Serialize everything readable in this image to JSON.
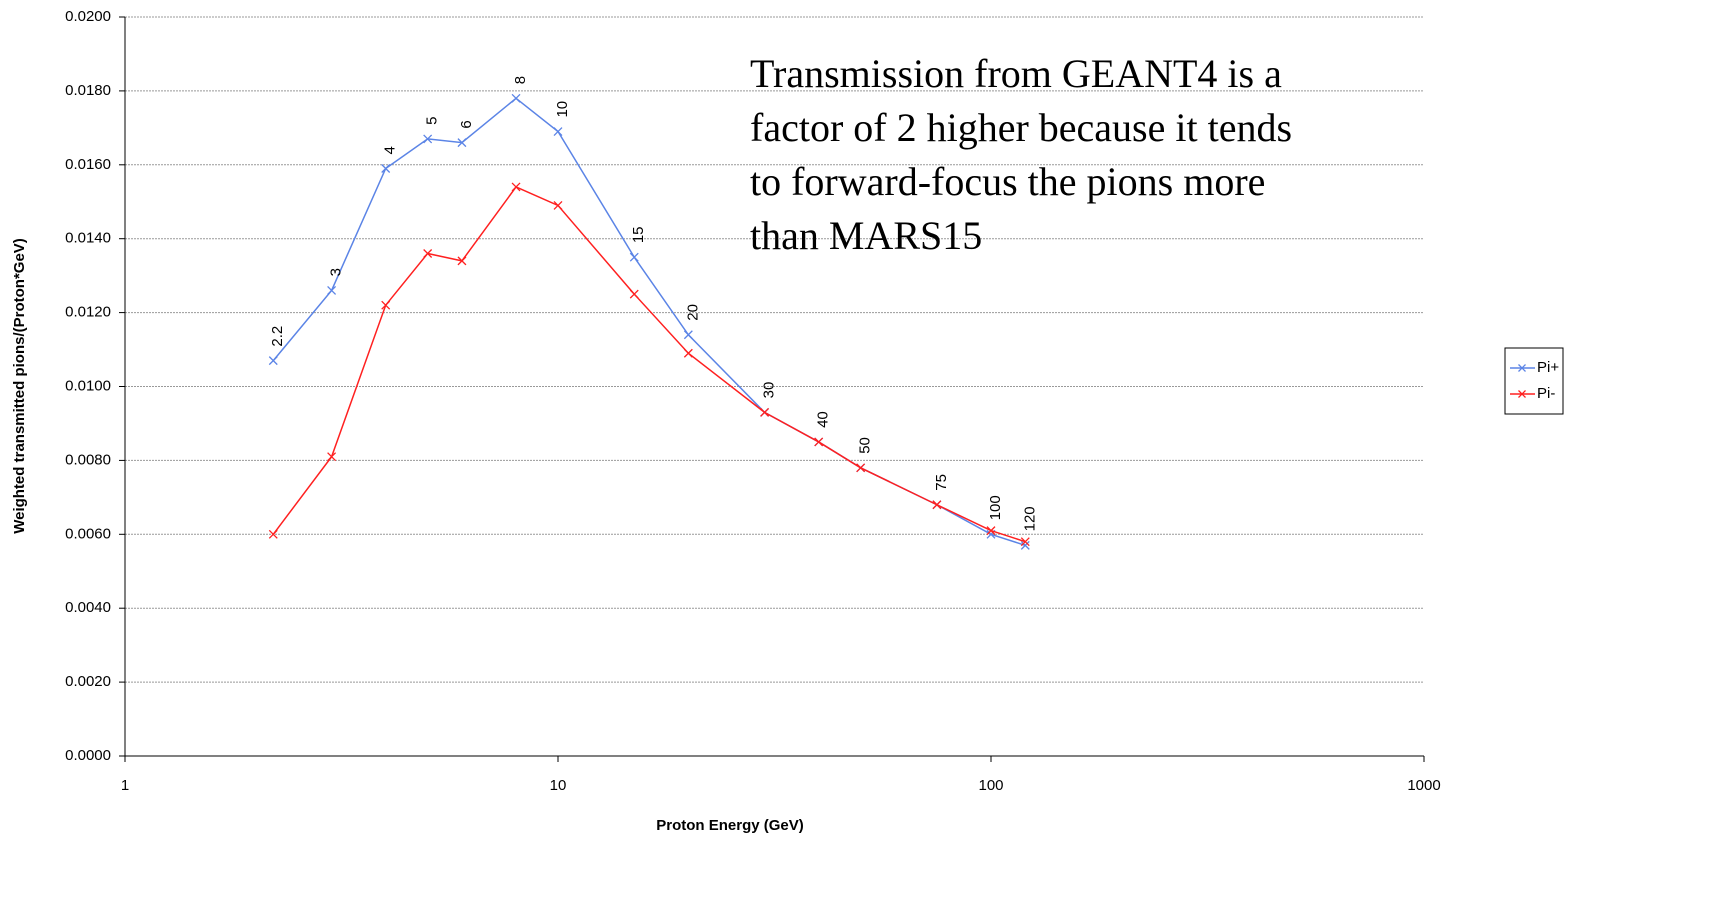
{
  "chart_data": {
    "type": "line",
    "x_label": "Proton Energy (GeV)",
    "y_label": "Weighted transmitted pions/(Proton*GeV)",
    "annotation": [
      "Transmission from GEANT4 is a",
      "factor of 2 higher because it tends",
      "to forward-focus the pions more",
      "than MARS15"
    ],
    "annotation_color": "#0000ee",
    "x": [
      2.2,
      3,
      4,
      5,
      6,
      8,
      10,
      15,
      20,
      30,
      40,
      50,
      75,
      100,
      120
    ],
    "series": [
      {
        "name": "Pi+",
        "color": "#5b84e6",
        "values": [
          0.0107,
          0.0126,
          0.0159,
          0.0167,
          0.0166,
          0.0178,
          0.0169,
          0.0135,
          0.0114,
          0.0093,
          0.0085,
          0.0078,
          0.0068,
          0.006,
          0.0057
        ]
      },
      {
        "name": "Pi-",
        "color": "#ff2020",
        "values": [
          0.006,
          0.0081,
          0.0122,
          0.0136,
          0.0134,
          0.0154,
          0.0149,
          0.0125,
          0.0109,
          0.0093,
          0.0085,
          0.0078,
          0.0068,
          0.0061,
          0.0058
        ]
      }
    ],
    "point_labels_series": 0,
    "xscale": "log",
    "xlim": [
      1,
      1000
    ],
    "xticks": [
      1,
      10,
      100,
      1000
    ],
    "ylim": [
      0,
      0.02
    ],
    "yticks": [
      {
        "value": 0,
        "label": "0.0000"
      },
      {
        "value": 0.002,
        "label": "0.0020"
      },
      {
        "value": 0.004,
        "label": "0.0040"
      },
      {
        "value": 0.006,
        "label": "0.0060"
      },
      {
        "value": 0.008,
        "label": "0.0080"
      },
      {
        "value": 0.01,
        "label": "0.0100"
      },
      {
        "value": 0.012,
        "label": "0.0120"
      },
      {
        "value": 0.014,
        "label": "0.0140"
      },
      {
        "value": 0.016,
        "label": "0.0160"
      },
      {
        "value": 0.018,
        "label": "0.0180"
      },
      {
        "value": 0.02,
        "label": "0.0200"
      }
    ],
    "grid": true,
    "legend": "right"
  }
}
